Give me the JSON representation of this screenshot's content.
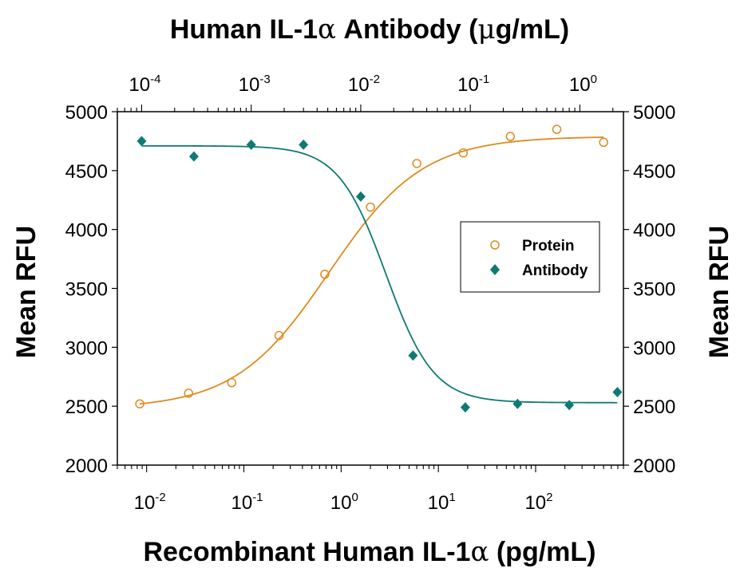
{
  "chart_data": {
    "type": "scatter",
    "title": "",
    "top_axis": {
      "label_prefix": "Human IL-1",
      "label_symbol": "α",
      "label_suffix": " Antibody (",
      "label_unit_symbol": "μ",
      "label_unit": "g/mL)",
      "scale": "log",
      "range": [
        6e-05,
        2.5
      ],
      "ticks": [
        {
          "value": 0.0001,
          "base": "10",
          "exp": "-4"
        },
        {
          "value": 0.001,
          "base": "10",
          "exp": "-3"
        },
        {
          "value": 0.01,
          "base": "10",
          "exp": "-2"
        },
        {
          "value": 0.1,
          "base": "10",
          "exp": "-1"
        },
        {
          "value": 1,
          "base": "10",
          "exp": "0"
        }
      ]
    },
    "bottom_axis": {
      "label_prefix": "Recombinant Human IL-1",
      "label_symbol": "α",
      "label_suffix": " (pg/mL)",
      "scale": "log",
      "range": [
        0.005,
        800
      ],
      "ticks": [
        {
          "value": 0.01,
          "base": "10",
          "exp": "-2"
        },
        {
          "value": 0.1,
          "base": "10",
          "exp": "-1"
        },
        {
          "value": 1,
          "base": "10",
          "exp": "0"
        },
        {
          "value": 10,
          "base": "10",
          "exp": "1"
        },
        {
          "value": 100,
          "base": "10",
          "exp": "2"
        }
      ]
    },
    "y_axis": {
      "label_left": "Mean RFU",
      "label_right": "Mean RFU",
      "range": [
        2000,
        5000
      ],
      "ticks": [
        "2000",
        "2500",
        "3000",
        "3500",
        "4000",
        "4500",
        "5000"
      ]
    },
    "legend": {
      "position": "right",
      "entries": [
        {
          "label": "Protein",
          "marker": "open-circle",
          "color": "#e08a1e"
        },
        {
          "label": "Antibody",
          "marker": "filled-diamond",
          "color": "#0f7a74"
        }
      ]
    },
    "series": [
      {
        "name": "Protein",
        "axis": "bottom",
        "color": "#e08a1e",
        "marker": "open-circle",
        "x": [
          0.0085,
          0.027,
          0.075,
          0.23,
          0.68,
          2.0,
          6.0,
          18,
          55,
          165,
          500
        ],
        "y": [
          2520,
          2610,
          2700,
          3100,
          3620,
          4190,
          4560,
          4650,
          4790,
          4850,
          4740
        ]
      },
      {
        "name": "Antibody",
        "axis": "top",
        "color": "#0f7a74",
        "marker": "filled-diamond",
        "x": [
          0.0001,
          0.0003,
          0.001,
          0.003,
          0.01,
          0.03,
          0.09,
          0.27,
          0.8,
          2.2
        ],
        "y": [
          4750,
          4620,
          4720,
          4720,
          4280,
          2930,
          2490,
          2520,
          2510,
          2620
        ]
      }
    ]
  }
}
